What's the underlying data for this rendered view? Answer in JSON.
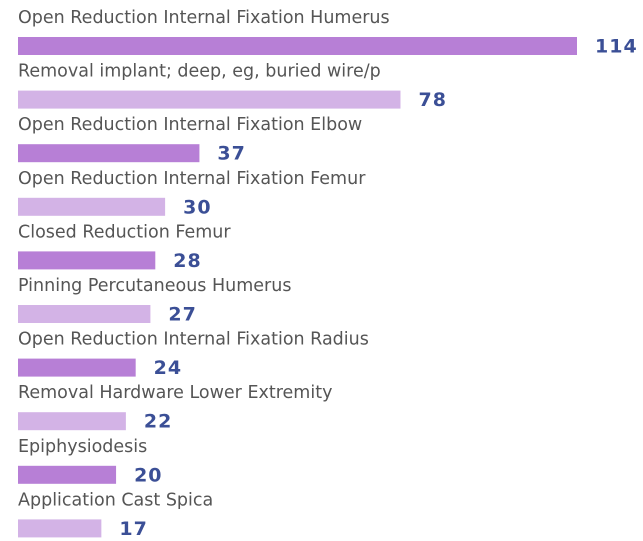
{
  "chart_data": {
    "type": "bar",
    "orientation": "horizontal",
    "categories": [
      "Open Reduction Internal Fixation Humerus",
      "Removal implant; deep, eg, buried wire/p",
      "Open Reduction Internal Fixation Elbow",
      "Open Reduction Internal Fixation Femur",
      "Closed Reduction Femur",
      "Pinning Percutaneous Humerus",
      "Open Reduction Internal Fixation Radius",
      "Removal Hardware Lower Extremity",
      "Epiphysiodesis",
      "Application Cast Spica"
    ],
    "values": [
      114,
      78,
      37,
      30,
      28,
      27,
      24,
      22,
      20,
      17
    ],
    "colors": [
      "#b77fd6",
      "#d3b3e6",
      "#b77fd6",
      "#d3b3e6",
      "#b77fd6",
      "#d3b3e6",
      "#b77fd6",
      "#d3b3e6",
      "#b77fd6",
      "#d3b3e6"
    ]
  }
}
